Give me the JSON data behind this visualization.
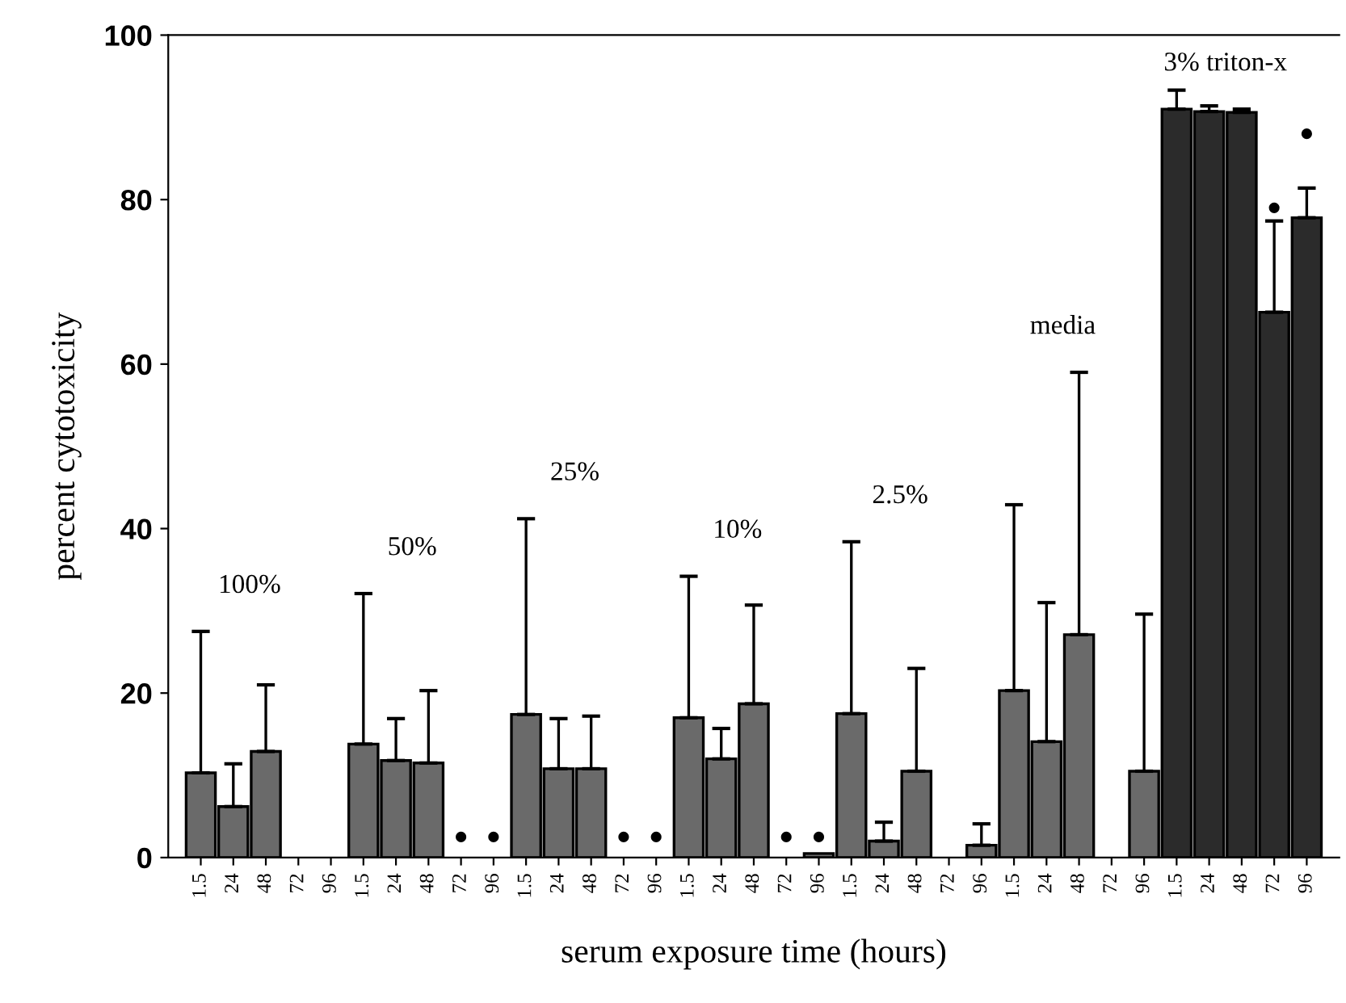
{
  "chart_data": {
    "type": "bar",
    "xlabel": "serum exposure time (hours)",
    "ylabel": "percent cytotoxicity",
    "categories": [
      "1.5",
      "24",
      "48",
      "72",
      "96",
      "1.5",
      "24",
      "48",
      "72",
      "96",
      "1.5",
      "24",
      "48",
      "72",
      "96",
      "1.5",
      "24",
      "48",
      "72",
      "96",
      "1.5",
      "24",
      "48",
      "72",
      "96",
      "1.5",
      "24",
      "48",
      "72",
      "96",
      "1.5",
      "24",
      "48",
      "72",
      "96"
    ],
    "series": [
      {
        "color": "#6a6a6a",
        "colors": [
          "#6a6a6a",
          "#6a6a6a",
          "#6a6a6a",
          "#6a6a6a",
          "#6a6a6a",
          "#6a6a6a",
          "#6a6a6a",
          "#6a6a6a",
          "#6a6a6a",
          "#6a6a6a",
          "#6a6a6a",
          "#6a6a6a",
          "#6a6a6a",
          "#6a6a6a",
          "#6a6a6a",
          "#6a6a6a",
          "#6a6a6a",
          "#6a6a6a",
          "#6a6a6a",
          "#6a6a6a",
          "#6a6a6a",
          "#6a6a6a",
          "#6a6a6a",
          "#6a6a6a",
          "#6a6a6a",
          "#6a6a6a",
          "#6a6a6a",
          "#6a6a6a",
          "#6a6a6a",
          "#6a6a6a",
          "#2b2b2b",
          "#2b2b2b",
          "#2b2b2b",
          "#2b2b2b",
          "#2b2b2b"
        ],
        "values": [
          10.3,
          6.2,
          12.9,
          null,
          null,
          13.8,
          11.8,
          11.5,
          null,
          null,
          17.4,
          10.8,
          10.8,
          null,
          null,
          17,
          12,
          18.7,
          null,
          0.5,
          17.5,
          2,
          10.5,
          null,
          1.5,
          20.3,
          14.1,
          27.1,
          null,
          10.5,
          91,
          90.7,
          90.6,
          66.3,
          77.8
        ],
        "errors": [
          [
            10.3,
            27.5
          ],
          [
            6.2,
            11.4
          ],
          [
            12.9,
            21
          ],
          null,
          null,
          [
            13.8,
            32.1
          ],
          [
            11.8,
            16.9
          ],
          [
            11.5,
            20.3
          ],
          null,
          null,
          [
            17.4,
            41.2
          ],
          [
            10.8,
            16.9
          ],
          [
            10.8,
            17.2
          ],
          null,
          null,
          [
            17,
            34.2
          ],
          [
            12,
            15.7
          ],
          [
            18.7,
            30.7
          ],
          null,
          null,
          [
            17.5,
            38.4
          ],
          [
            2,
            4.3
          ],
          [
            10.5,
            23
          ],
          null,
          [
            1.5,
            4.1
          ],
          [
            20.3,
            42.9
          ],
          [
            14.1,
            31
          ],
          [
            27.1,
            59
          ],
          null,
          [
            10.5,
            29.6
          ],
          [
            91,
            93.3
          ],
          [
            90.7,
            91.4
          ],
          [
            90.6,
            91
          ],
          [
            66.3,
            77.4
          ],
          [
            77.8,
            81.4
          ]
        ]
      },
      {
        "type": "scatter",
        "color": "#000000",
        "marker": "circle",
        "values": [
          null,
          null,
          null,
          null,
          null,
          null,
          null,
          null,
          2.5,
          2.5,
          null,
          null,
          null,
          2.5,
          2.5,
          null,
          null,
          null,
          2.5,
          2.5,
          null,
          null,
          null,
          null,
          null,
          null,
          null,
          null,
          null,
          null,
          null,
          null,
          null,
          79,
          88
        ]
      }
    ],
    "annotations": [
      "100%",
      "50%",
      "25%",
      "10%",
      "2.5%",
      "media",
      "3% triton-x"
    ],
    "ylim": [
      0,
      100
    ],
    "yticks": [
      0,
      20,
      40,
      60,
      80,
      100
    ],
    "grid": false,
    "legend": false
  }
}
